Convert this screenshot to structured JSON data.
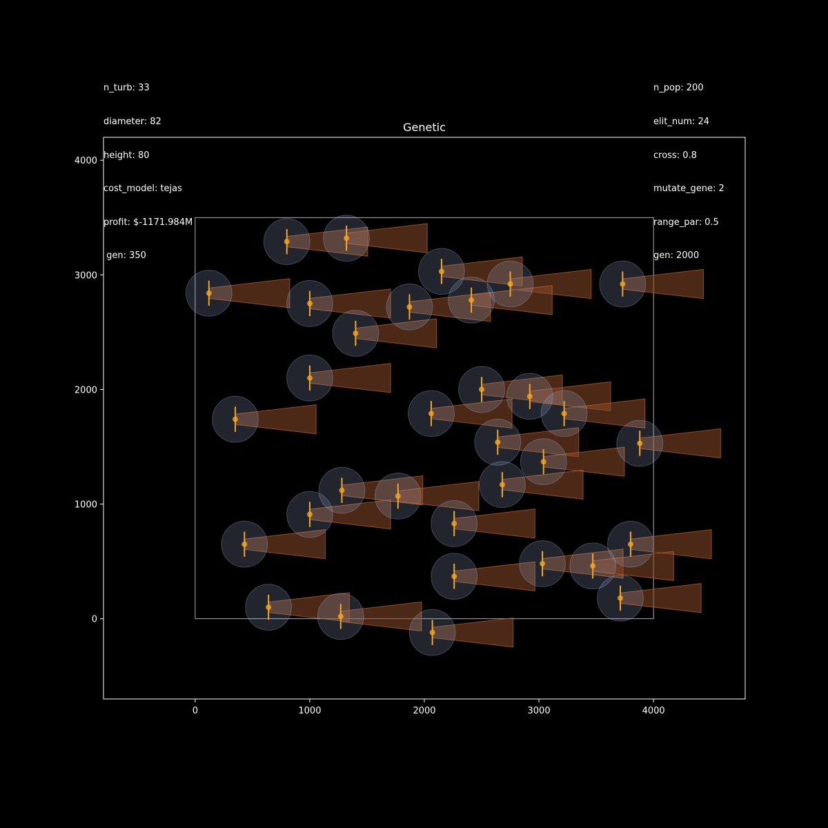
{
  "params_left": {
    "n_turb": "n_turb: 33",
    "diameter": "diameter: 82",
    "height": "height: 80",
    "cost_model": "cost_model: tejas",
    "profit": "profit: $-1171.984M",
    "gen": " gen: 350"
  },
  "params_right": {
    "n_pop": "n_pop: 200",
    "elit_num": "elit_num: 24",
    "cross": "cross: 0.8",
    "mutate_gene": "mutate_gene: 2",
    "range_par": "range_par: 0.5",
    "gen": "gen: 2000"
  },
  "chart_data": {
    "type": "scatter",
    "title": "Genetic",
    "xlabel": "",
    "ylabel": "",
    "xlim": [
      -800,
      4800
    ],
    "ylim": [
      -700,
      4200
    ],
    "xticks": [
      0,
      1000,
      2000,
      3000,
      4000
    ],
    "yticks": [
      0,
      1000,
      2000,
      3000,
      4000
    ],
    "boundary": {
      "x": [
        0,
        4000
      ],
      "y": [
        0,
        3500
      ]
    },
    "grid": false,
    "rotor_diameter": 82,
    "turbines": [
      {
        "x": 800,
        "y": 3290
      },
      {
        "x": 1320,
        "y": 3320
      },
      {
        "x": 2150,
        "y": 3030
      },
      {
        "x": 2750,
        "y": 2920
      },
      {
        "x": 3730,
        "y": 2920
      },
      {
        "x": 120,
        "y": 2840
      },
      {
        "x": 1000,
        "y": 2750
      },
      {
        "x": 1870,
        "y": 2720
      },
      {
        "x": 2410,
        "y": 2780
      },
      {
        "x": 1400,
        "y": 2490
      },
      {
        "x": 1000,
        "y": 2100
      },
      {
        "x": 2500,
        "y": 2000
      },
      {
        "x": 2920,
        "y": 1940
      },
      {
        "x": 350,
        "y": 1740
      },
      {
        "x": 2060,
        "y": 1790
      },
      {
        "x": 3220,
        "y": 1790
      },
      {
        "x": 2640,
        "y": 1540
      },
      {
        "x": 3880,
        "y": 1530
      },
      {
        "x": 3040,
        "y": 1370
      },
      {
        "x": 1280,
        "y": 1120
      },
      {
        "x": 1770,
        "y": 1070
      },
      {
        "x": 2680,
        "y": 1170
      },
      {
        "x": 1000,
        "y": 910
      },
      {
        "x": 2260,
        "y": 830
      },
      {
        "x": 430,
        "y": 650
      },
      {
        "x": 3800,
        "y": 650
      },
      {
        "x": 3030,
        "y": 480
      },
      {
        "x": 3470,
        "y": 460
      },
      {
        "x": 2260,
        "y": 370
      },
      {
        "x": 3710,
        "y": 180
      },
      {
        "x": 640,
        "y": 100
      },
      {
        "x": 1270,
        "y": 20
      },
      {
        "x": 2070,
        "y": -120
      }
    ],
    "colors": {
      "rotor": "#9aaad2",
      "wake": "#8a4a2a",
      "wake_edge": "#c0642c",
      "hub": "#f5a623",
      "axes": "#ffffff"
    }
  }
}
